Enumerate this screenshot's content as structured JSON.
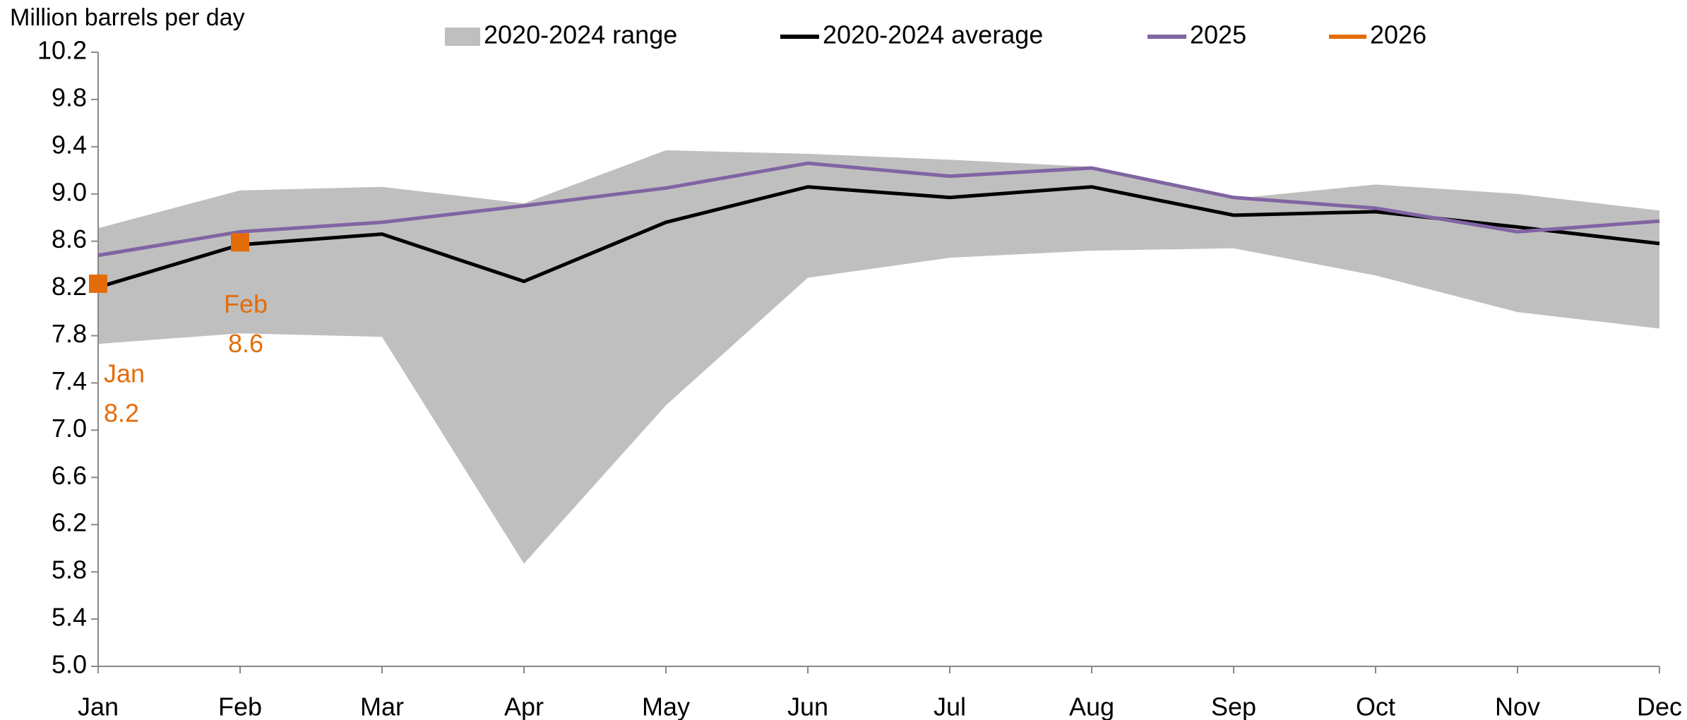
{
  "chart_data": {
    "type": "line",
    "y_label": "Million barrels per day",
    "categories": [
      "Jan",
      "Feb",
      "Mar",
      "Apr",
      "May",
      "Jun",
      "Jul",
      "Aug",
      "Sep",
      "Oct",
      "Nov",
      "Dec"
    ],
    "ylim": [
      5,
      10.2
    ],
    "yticks": [
      {
        "value": 5,
        "label": "5.0"
      },
      5.4,
      5.8,
      6.2,
      6.6,
      {
        "value": 7,
        "label": "7.0"
      },
      7.4,
      7.8,
      8.2,
      8.6,
      {
        "value": 9,
        "label": "9.0"
      },
      9.4,
      9.8,
      10.2
    ],
    "legend": "top",
    "range": {
      "name": "2020-2024 range",
      "color": "#bfbfbf",
      "upper": [
        8.71,
        9.03,
        9.06,
        8.92,
        9.37,
        9.34,
        9.29,
        9.23,
        8.96,
        9.08,
        9.0,
        8.86
      ],
      "lower": [
        7.73,
        7.82,
        7.79,
        5.87,
        7.21,
        8.29,
        8.46,
        8.52,
        8.54,
        8.31,
        8.0,
        7.86
      ]
    },
    "series": [
      {
        "name": "2020-2024 average",
        "color": "#000000",
        "values": [
          8.21,
          8.57,
          8.66,
          8.26,
          8.76,
          9.06,
          8.97,
          9.06,
          8.82,
          8.85,
          8.72,
          8.58
        ]
      },
      {
        "name": "2025",
        "color": "#8064a2",
        "values": [
          8.48,
          8.68,
          8.76,
          8.9,
          9.05,
          9.26,
          9.15,
          9.22,
          8.97,
          8.88,
          8.68,
          8.77
        ]
      },
      {
        "name": "2026",
        "color": "#e36c09",
        "marker": "square",
        "values": [
          8.24,
          8.59,
          null,
          null,
          null,
          null,
          null,
          null,
          null,
          null,
          null,
          null
        ],
        "value_labels": [
          "8.2",
          "8.6",
          null,
          null,
          null,
          null,
          null,
          null,
          null,
          null,
          null,
          null
        ]
      }
    ]
  }
}
